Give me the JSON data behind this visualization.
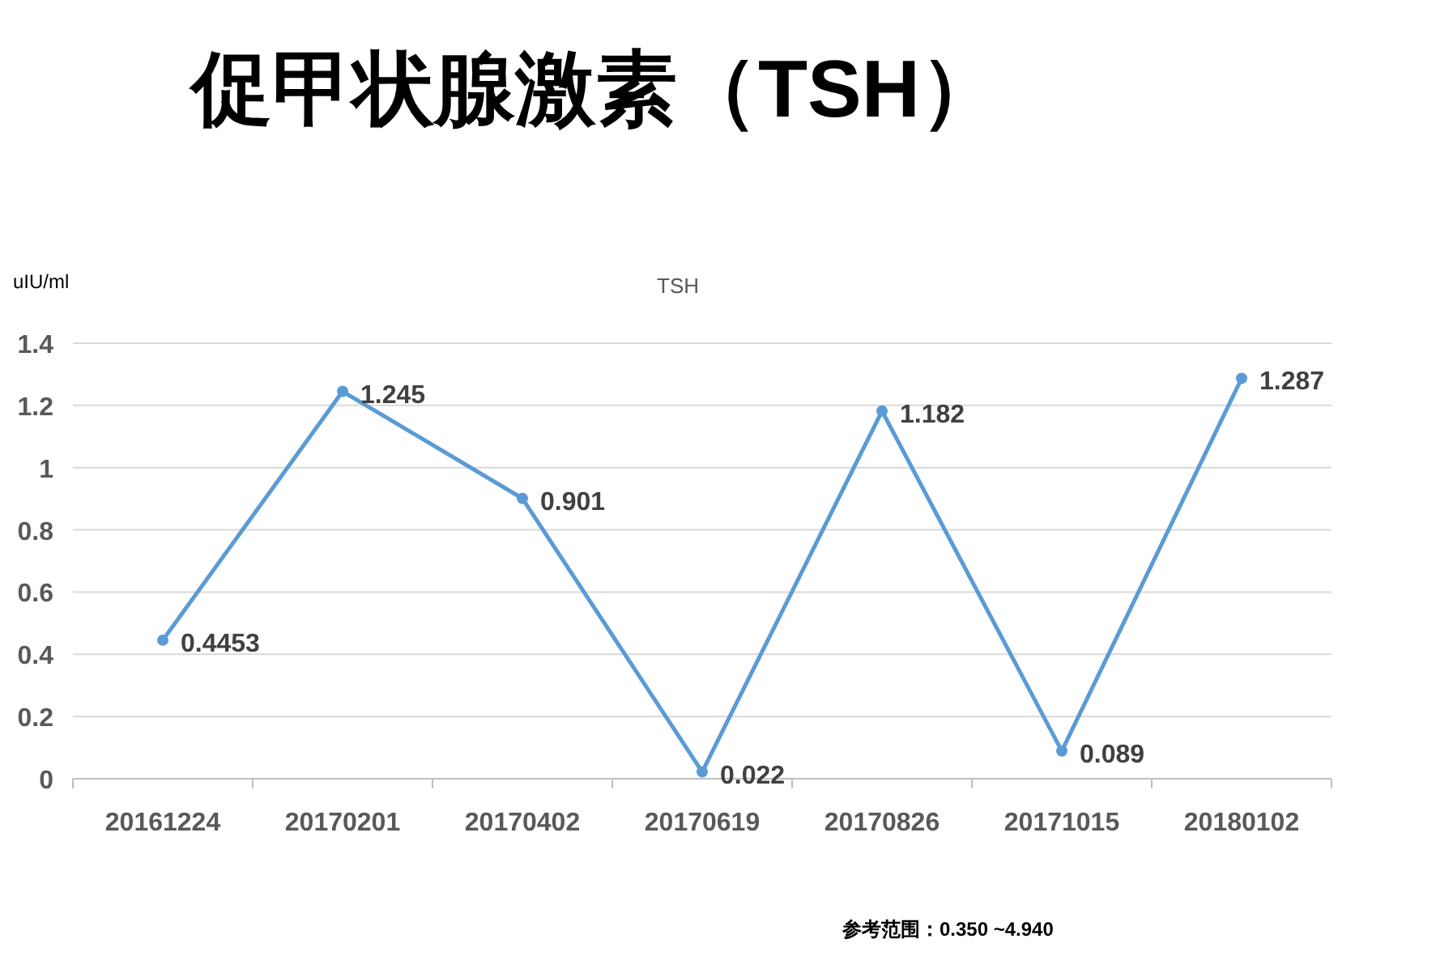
{
  "chart_data": {
    "type": "line",
    "title": "促甲状腺激素（TSH）",
    "subtitle": "TSH",
    "ylabel": "uIU/ml",
    "categories": [
      "20161224",
      "20170201",
      "20170402",
      "20170619",
      "20170826",
      "20171015",
      "20180102"
    ],
    "series": [
      {
        "color": "#5b9bd5",
        "values": [
          0.4453,
          1.245,
          0.901,
          0.022,
          1.182,
          0.089,
          1.287
        ]
      }
    ],
    "ylim": [
      0,
      1.4
    ],
    "yticks": [
      0,
      0.2,
      0.4,
      0.6,
      0.8,
      1,
      1.2,
      1.4
    ],
    "grid": "y",
    "marker": "circle",
    "line_style": "solid",
    "data_labels": true,
    "annotations": [
      "参考范围：0.350 ~4.940"
    ]
  }
}
